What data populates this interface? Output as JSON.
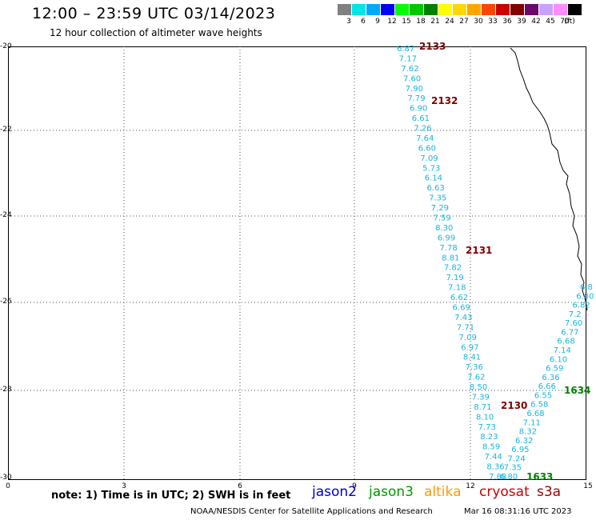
{
  "header": {
    "title": "12:00 – 23:59 UTC 03/14/2023",
    "subtitle": "12 hour collection of altimeter wave heights"
  },
  "legend": {
    "unit": "(ft)",
    "bins": [
      {
        "label": "3",
        "color": "#808080"
      },
      {
        "label": "6",
        "color": "#00e6e6"
      },
      {
        "label": "9",
        "color": "#00aaff"
      },
      {
        "label": "12",
        "color": "#0000ff"
      },
      {
        "label": "15",
        "color": "#00ff00"
      },
      {
        "label": "18",
        "color": "#00c800"
      },
      {
        "label": "21",
        "color": "#008000"
      },
      {
        "label": "24",
        "color": "#ffff00"
      },
      {
        "label": "27",
        "color": "#ffd700"
      },
      {
        "label": "30",
        "color": "#ffa500"
      },
      {
        "label": "33",
        "color": "#ff4500"
      },
      {
        "label": "36",
        "color": "#cc0000"
      },
      {
        "label": "39",
        "color": "#800000"
      },
      {
        "label": "42",
        "color": "#6a0a6a"
      },
      {
        "label": "45",
        "color": "#c8a0ff"
      },
      {
        "label": "70",
        "color": "#ff8cff"
      },
      {
        "label": "",
        "color": "#000000"
      }
    ]
  },
  "map": {
    "x_ticks": [
      "0",
      "3",
      "6",
      "9",
      "12",
      "15"
    ],
    "y_ticks": [
      "-20",
      "-22",
      "-24",
      "-26",
      "-28",
      "-30"
    ],
    "pass_labels": [
      {
        "text": "2133",
        "color": "#800000"
      },
      {
        "text": "2132",
        "color": "#800000"
      },
      {
        "text": "2131",
        "color": "#800000"
      },
      {
        "text": "2130",
        "color": "#800000"
      },
      {
        "text": "1634",
        "color": "#008000"
      },
      {
        "text": "1633",
        "color": "#008000"
      }
    ],
    "track_a_values": [
      "6.87",
      "7.17",
      "7.62",
      "7.60",
      "7.90",
      "7.79",
      "6.90",
      "6.61",
      "7.26",
      "7.64",
      "6.60",
      "7.09",
      "5.73",
      "6.14",
      "6.63",
      "7.35",
      "7.29",
      "7.59",
      "8.30",
      "6.99",
      "7.78",
      "8.81",
      "7.82",
      "7.19",
      "7.18",
      "6.62",
      "6.69",
      "7.43",
      "7.71",
      "7.09",
      "6.97",
      "8.41",
      "7.36",
      "7.62",
      "8.50",
      "7.39",
      "8.71",
      "8.10",
      "7.73",
      "8.23",
      "8.59",
      "7.44",
      "8.36",
      "7.88"
    ],
    "track_b_values": [
      "6.8",
      "6.80",
      "6.82",
      "7.2",
      "7.60",
      "6.77",
      "6.68",
      "7.14",
      "6.10",
      "6.59",
      "6.36",
      "6.66",
      "6.55",
      "6.58",
      "6.68",
      "7.11",
      "8.32",
      "6.32",
      "6.95",
      "7.24",
      "7.35",
      "6.80"
    ],
    "value_color": "#1ab4dc"
  },
  "footer": {
    "note": "note: 1) Time is in UTC; 2) SWH is in feet",
    "satellites": [
      {
        "name": "jason2",
        "color": "#0000cc"
      },
      {
        "name": "jason3",
        "color": "#009900"
      },
      {
        "name": "altika",
        "color": "#ff9900"
      },
      {
        "name": "cryosat",
        "color": "#cc0000"
      },
      {
        "name": "s3a",
        "color": "#990000"
      }
    ],
    "credit": "NOAA/NESDIS Center for Satellite Applications and Research",
    "timestamp": "Mar 16 08:31:16 UTC 2023"
  }
}
